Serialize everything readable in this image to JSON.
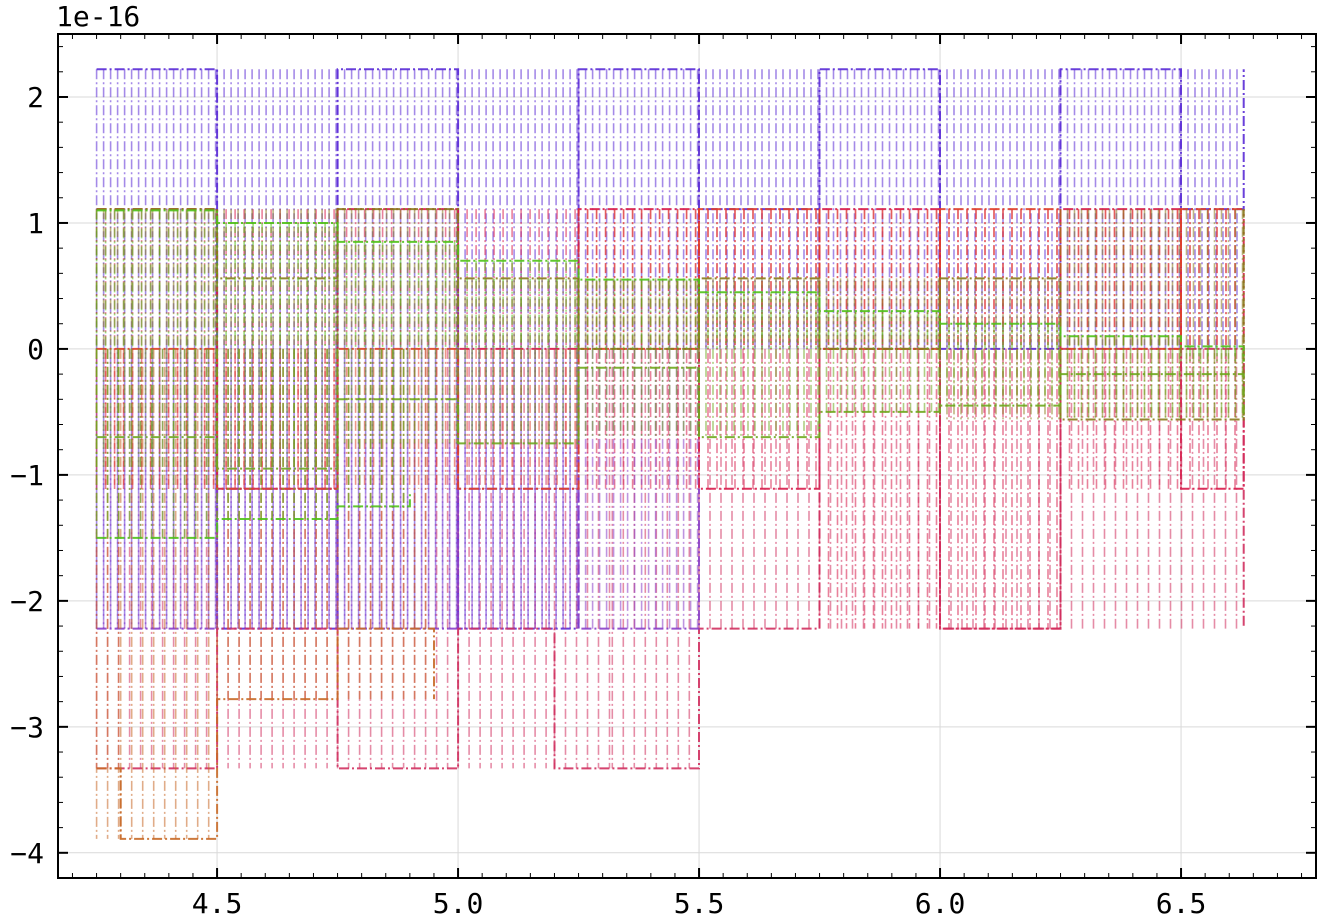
{
  "chart_data": {
    "type": "line",
    "title": "",
    "xlabel": "",
    "ylabel": "",
    "y_offset_label": "1e-16",
    "xlim": [
      4.17,
      6.78
    ],
    "ylim": [
      -4.2e-16,
      2.5e-16
    ],
    "xticks": [
      4.5,
      5.0,
      5.5,
      6.0,
      6.5
    ],
    "xtick_labels": [
      "4.5",
      "5.0",
      "5.5",
      "6.0",
      "6.5"
    ],
    "yticks": [
      -4e-16,
      -3e-16,
      -2e-16,
      -1e-16,
      0,
      1e-16,
      2e-16
    ],
    "ytick_labels": [
      "−4",
      "−3",
      "−2",
      "−1",
      "0",
      "1",
      "2"
    ],
    "grid": true,
    "line_style": "dash-dot",
    "series": [
      {
        "color": "#5a2bd6",
        "x": [
          4.25,
          4.5,
          4.75,
          5.0,
          5.25,
          5.5,
          5.75,
          6.0,
          6.25,
          6.5,
          6.63
        ],
        "y": [
          2.22e-16,
          -2.22e-16,
          2.22e-16,
          -2.22e-16,
          2.22e-16,
          1.11e-16,
          2.22e-16,
          0,
          2.22e-16,
          1.11e-16,
          2.22e-16
        ]
      },
      {
        "color": "#d81b4a",
        "x": [
          4.25,
          4.5,
          4.75,
          5.0,
          5.25,
          5.5,
          5.75,
          6.0,
          6.25,
          6.5,
          6.63
        ],
        "y": [
          1.11e-16,
          -1.11e-16,
          1.11e-16,
          0,
          1.11e-16,
          -1.11e-16,
          1.11e-16,
          -2.22e-16,
          1.11e-16,
          -1.11e-16,
          1.11e-16
        ]
      },
      {
        "color": "#d0305f",
        "x": [
          4.25,
          4.5,
          4.75,
          5.0,
          5.2,
          5.32,
          5.5,
          5.75,
          6.0,
          6.25,
          6.63
        ],
        "y": [
          -3.33e-16,
          -2.22e-16,
          -3.33e-16,
          -2.22e-16,
          -3.33e-16,
          -3.33e-16,
          -2.22e-16,
          0,
          -2.22e-16,
          0,
          -2.22e-16
        ]
      },
      {
        "color": "#8a3fc8",
        "x": [
          4.25,
          4.5,
          4.75,
          5.0,
          5.25,
          5.5
        ],
        "y": [
          -2.22e-16,
          -1.11e-16,
          -2.22e-16,
          -1.11e-16,
          -2.22e-16,
          -1.11e-16
        ]
      },
      {
        "color": "#e0402a",
        "x": [
          4.25,
          4.5,
          4.75,
          5.0,
          5.25,
          5.5,
          5.75,
          6.0,
          6.25,
          6.5,
          6.63
        ],
        "y": [
          0,
          -1.11e-16,
          0,
          -1.11e-16,
          0,
          1.11e-16,
          0,
          1.11e-16,
          0,
          1.11e-16,
          1.11e-16
        ]
      },
      {
        "color": "#c86a28",
        "x": [
          4.25,
          4.3,
          4.5,
          4.75,
          4.95
        ],
        "y": [
          -3.33e-16,
          -3.89e-16,
          -2.78e-16,
          -2.22e-16,
          -2.78e-16
        ]
      },
      {
        "color": "#8a7a1c",
        "x": [
          4.25,
          4.5,
          4.75,
          5.0,
          5.25,
          5.5,
          5.75,
          6.0,
          6.25,
          6.63
        ],
        "y": [
          1.11e-16,
          5.6e-17,
          1.11e-16,
          5.6e-17,
          0,
          5.6e-17,
          0,
          5.6e-17,
          -5.6e-17,
          1.11e-16
        ]
      },
      {
        "color": "#4fc21a",
        "x": [
          4.25,
          4.5,
          4.75,
          5.0,
          5.25,
          5.5,
          5.75,
          6.0,
          6.25,
          6.5,
          6.63
        ],
        "y": [
          1.1e-16,
          1e-16,
          8.5e-17,
          7e-17,
          5.5e-17,
          4.5e-17,
          3e-17,
          2e-17,
          1e-17,
          2e-18,
          -1e-17
        ]
      },
      {
        "color": "#4fc21a",
        "x": [
          4.25,
          4.5,
          4.75,
          4.9
        ],
        "y": [
          -1.5e-16,
          -1.35e-16,
          -1.25e-16,
          -1.15e-16
        ]
      },
      {
        "color": "#6fa81e",
        "x": [
          4.25,
          4.5,
          4.75,
          5.0,
          5.25,
          5.5,
          5.75,
          6.0,
          6.25,
          6.63
        ],
        "y": [
          -7e-17,
          -9.5e-17,
          -4e-17,
          -7.5e-17,
          -1.5e-17,
          -7e-17,
          -5e-17,
          -4.5e-17,
          -2e-17,
          -5.5e-17
        ]
      }
    ]
  }
}
